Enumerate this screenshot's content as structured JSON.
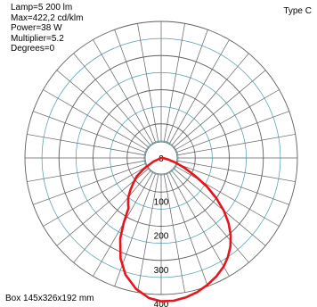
{
  "info": {
    "lamp": "Lamp=5 200 lm",
    "max": "Max=422,2 cd/klm",
    "power": "Power=38 W",
    "multiplier": "Multiplier=5.2",
    "degrees": "Degrees=0"
  },
  "type_label": "Type C",
  "box_label": "Box 145x326x192 mm",
  "colors": {
    "grid": "#5f5f5f",
    "grid_accent": "#4a9aa6",
    "curve": "#e8141b"
  },
  "chart_data": {
    "type": "polar",
    "radial_unit": "cd/klm",
    "radial_ticks": [
      0,
      100,
      200,
      300,
      400
    ],
    "radial_max": 400,
    "angle_step_deg": 10,
    "series": [
      {
        "name": "",
        "points": [
          {
            "angle": -90,
            "value": 0
          },
          {
            "angle": -65,
            "value": 25
          },
          {
            "angle": -58,
            "value": 60
          },
          {
            "angle": -53,
            "value": 90
          },
          {
            "angle": -48,
            "value": 110
          },
          {
            "angle": -44,
            "value": 130
          },
          {
            "angle": -40,
            "value": 150
          },
          {
            "angle": -36,
            "value": 165
          },
          {
            "angle": -33,
            "value": 176
          },
          {
            "angle": -32,
            "value": 190
          },
          {
            "angle": -30,
            "value": 220
          },
          {
            "angle": -27,
            "value": 265
          },
          {
            "angle": -22,
            "value": 318
          },
          {
            "angle": -17,
            "value": 358
          },
          {
            "angle": -11,
            "value": 390
          },
          {
            "angle": -5,
            "value": 412
          },
          {
            "angle": 0,
            "value": 420
          },
          {
            "angle": 5,
            "value": 420
          },
          {
            "angle": 10,
            "value": 415
          },
          {
            "angle": 15,
            "value": 407
          },
          {
            "angle": 20,
            "value": 396
          },
          {
            "angle": 25,
            "value": 383
          },
          {
            "angle": 30,
            "value": 367
          },
          {
            "angle": 34,
            "value": 350
          },
          {
            "angle": 38,
            "value": 330
          },
          {
            "angle": 42,
            "value": 305
          },
          {
            "angle": 46,
            "value": 275
          },
          {
            "angle": 50,
            "value": 240
          },
          {
            "angle": 54,
            "value": 200
          },
          {
            "angle": 58,
            "value": 158
          },
          {
            "angle": 62,
            "value": 115
          },
          {
            "angle": 67,
            "value": 75
          },
          {
            "angle": 72,
            "value": 45
          },
          {
            "angle": 78,
            "value": 20
          },
          {
            "angle": 84,
            "value": 8
          },
          {
            "angle": 90,
            "value": 0
          }
        ]
      }
    ]
  }
}
